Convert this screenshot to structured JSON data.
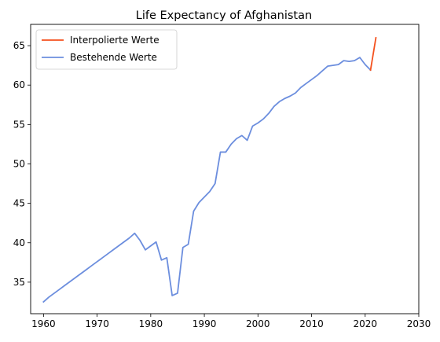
{
  "chart_data": {
    "type": "line",
    "title": "Life Expectancy of Afghanistan",
    "xlabel": "",
    "ylabel": "",
    "xlim": [
      1957.6,
      2030
    ],
    "ylim": [
      31.0,
      67.7
    ],
    "xticks": [
      1960,
      1970,
      1980,
      1990,
      2000,
      2010,
      2020,
      2030
    ],
    "yticks": [
      35,
      40,
      45,
      50,
      55,
      60,
      65
    ],
    "grid": false,
    "legend": {
      "placement": "top-left"
    },
    "series": [
      {
        "name": "Interpolierte Werte",
        "color": "#f4511e",
        "x": [
          2021,
          2022
        ],
        "y": [
          61.9,
          66.0
        ]
      },
      {
        "name": "Bestehende Werte",
        "color": "#6c8ede",
        "x": [
          1960,
          1961,
          1962,
          1963,
          1964,
          1965,
          1966,
          1967,
          1968,
          1969,
          1970,
          1971,
          1972,
          1973,
          1974,
          1975,
          1976,
          1977,
          1978,
          1979,
          1980,
          1981,
          1982,
          1983,
          1984,
          1985,
          1986,
          1987,
          1988,
          1989,
          1990,
          1991,
          1992,
          1993,
          1994,
          1995,
          1996,
          1997,
          1998,
          1999,
          2000,
          2001,
          2002,
          2003,
          2004,
          2005,
          2006,
          2007,
          2008,
          2009,
          2010,
          2011,
          2012,
          2013,
          2014,
          2015,
          2016,
          2017,
          2018,
          2019,
          2020,
          2021
        ],
        "y": [
          32.5,
          33.1,
          33.6,
          34.1,
          34.6,
          35.1,
          35.6,
          36.1,
          36.6,
          37.1,
          37.6,
          38.1,
          38.6,
          39.1,
          39.6,
          40.1,
          40.6,
          41.2,
          40.3,
          39.1,
          39.6,
          40.1,
          37.8,
          38.1,
          33.3,
          33.6,
          39.4,
          39.8,
          44.0,
          45.1,
          45.8,
          46.5,
          47.5,
          51.5,
          51.5,
          52.5,
          53.2,
          53.6,
          53.0,
          54.8,
          55.2,
          55.7,
          56.4,
          57.3,
          57.9,
          58.3,
          58.6,
          59.0,
          59.7,
          60.2,
          60.7,
          61.2,
          61.8,
          62.4,
          62.5,
          62.6,
          63.1,
          63.0,
          63.1,
          63.5,
          62.6,
          61.9
        ]
      }
    ]
  }
}
